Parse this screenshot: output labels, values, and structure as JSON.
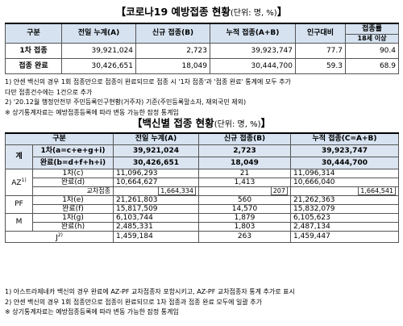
{
  "t1": {
    "title": "【코로나19 예방접종 현황",
    "unit": "(단위: 명, %)",
    "close": "】",
    "headers": [
      "구분",
      "전일 누계(A)",
      "신규 접종(B)",
      "누적 접종(A+B)",
      "인구대비",
      "접종률",
      "18세 이상"
    ],
    "rows": [
      {
        "label": "1차 접종",
        "a": "39,921,024",
        "b": "2,723",
        "ab": "39,923,747",
        "pop": "77.7",
        "adult": "90.4"
      },
      {
        "label": "접종 완료",
        "a": "30,426,651",
        "b": "18,049",
        "ab": "30,444,700",
        "pop": "59.3",
        "adult": "68.9"
      }
    ],
    "notes": [
      "1)  얀센 백신의 경우 1회 접종만으로 접종이 완료되므로 접종 시 '1차 접종'과 '접종 완료' 통계에 모두 추가",
      "     다만 접종건수에는 1건으로 추가",
      "2)  '20.12월 행정안전부 주민등록인구현황(거주자) 기준(주민등록말소자, 재외국민 제외)",
      "※ 상기통계자료는 예방접종등록에 따라 변동 가능한 잠정 통계임"
    ]
  },
  "t2": {
    "title": "【백신별 접종 현황",
    "unit": "(단위: 명, %)",
    "close": "】",
    "headers": [
      "구분",
      "전일 누계(A)",
      "신규 접종(B)",
      "누적 접종(C=A+B)"
    ],
    "total_label": "계",
    "total_rows": [
      {
        "sub": "1차(a=c+e+g+i)",
        "a": "39,921,024",
        "b": "2,723",
        "c": "39,923,747"
      },
      {
        "sub": "완료(b=d+f+h+i)",
        "a": "30,426,651",
        "b": "18,049",
        "c": "30,444,700"
      }
    ],
    "az_label": "AZ",
    "az_rows": [
      {
        "sub": "1차(c)",
        "a": "11,096,293",
        "b": "21",
        "c": "11,096,314"
      },
      {
        "sub": "완료(d)",
        "a": "10,664,627",
        "b": "1,413",
        "c": "10,666,040"
      },
      {
        "sub": "교차접종",
        "a": "1,664,334",
        "b": "207",
        "c": "1,664,541"
      }
    ],
    "pf_label": "PF",
    "pf_rows": [
      {
        "sub": "1차(e)",
        "a": "21,261,803",
        "b": "560",
        "c": "21,262,363"
      },
      {
        "sub": "완료(f)",
        "a": "15,817,509",
        "b": "14,570",
        "c": "15,832,079"
      }
    ],
    "m_label": "M",
    "m_rows": [
      {
        "sub": "1차(g)",
        "a": "6,103,744",
        "b": "1,879",
        "c": "6,105,623"
      },
      {
        "sub": "완료(h)",
        "a": "2,485,331",
        "b": "1,803",
        "c": "2,487,134"
      }
    ],
    "j_label": "J",
    "j_row": {
      "sub": "",
      "a": "1,459,184",
      "b": "263",
      "c": "1,459,447"
    },
    "notes": [
      "1)  아스트라제네카 백신의 경우 완료에 AZ-PF 교차접종자 포함시키고, AZ-PF 교차접종자 통계 추가로 표시",
      "2)  얀센 백신의 경우 1회 접종만으로 접종이 완료되므로 1차 접종과 접종 완료 모두에 일괄 추가",
      "※ 상기통계자료는 예방접종등록에 따라 변동 가능한 잠정 통계임"
    ]
  }
}
